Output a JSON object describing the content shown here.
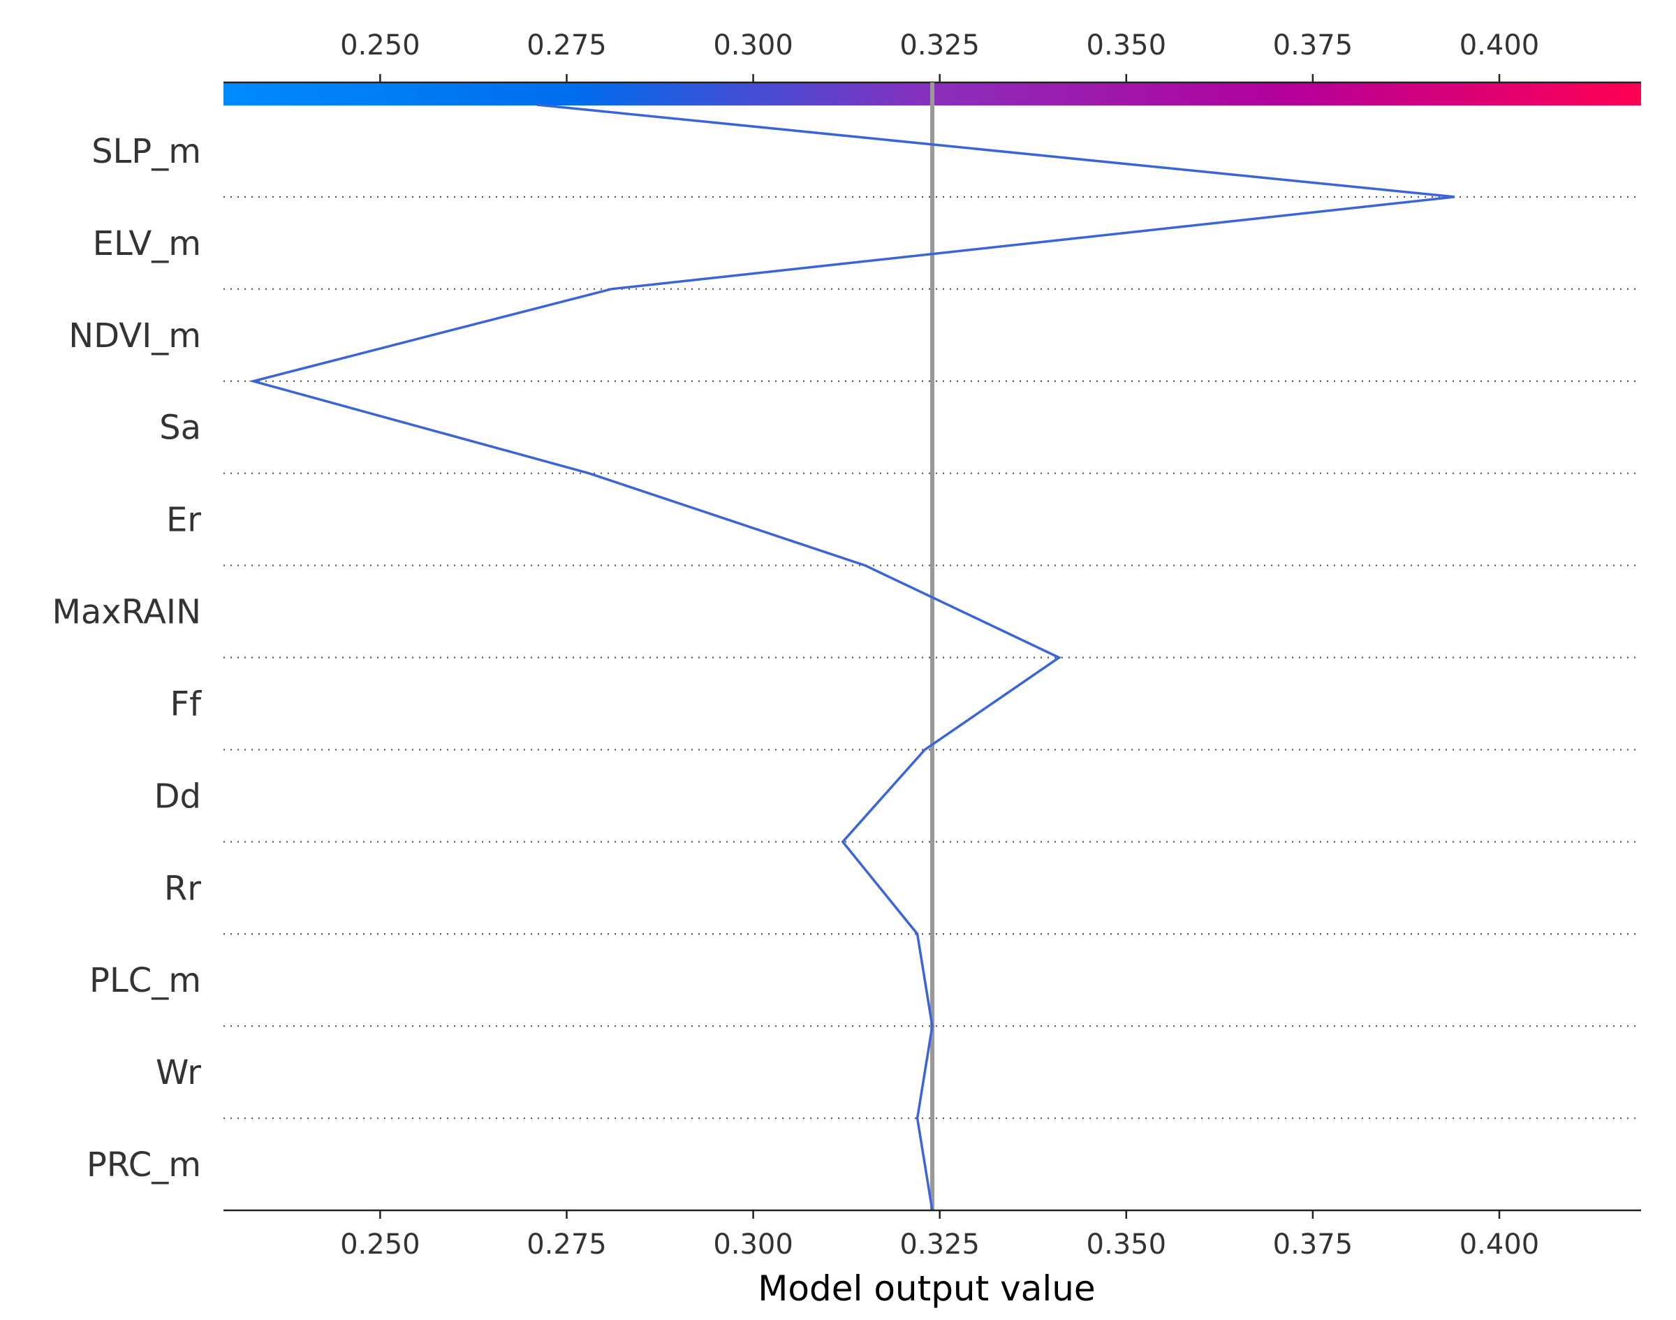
{
  "chart_data": {
    "type": "line",
    "subtype": "decision_plot",
    "xlabel": "Model output value",
    "xlim": [
      0.229,
      0.419
    ],
    "ticks": [
      0.25,
      0.275,
      0.3,
      0.325,
      0.35,
      0.375,
      0.4
    ],
    "tick_labels": [
      "0.250",
      "0.275",
      "0.300",
      "0.325",
      "0.350",
      "0.375",
      "0.400"
    ],
    "base_value": 0.324,
    "features": [
      "SLP_m",
      "ELV_m",
      "NDVI_m",
      "Sa",
      "Er",
      "MaxRAIN",
      "Ff",
      "Dd",
      "Rr",
      "PLC_m",
      "Wr",
      "PRC_m"
    ],
    "path": [
      0.271,
      0.394,
      0.281,
      0.233,
      0.278,
      0.315,
      0.341,
      0.323,
      0.312,
      0.322,
      0.324,
      0.322,
      0.324
    ],
    "line_color": "#3a65d9",
    "base_line_color": "#999999",
    "colorbar": {
      "colors": [
        "#008bfb",
        "#006ded",
        "#8a2fbd",
        "#b4009b",
        "#ff0052"
      ]
    },
    "grid": "dotted horizontal separators",
    "legend": "none"
  }
}
